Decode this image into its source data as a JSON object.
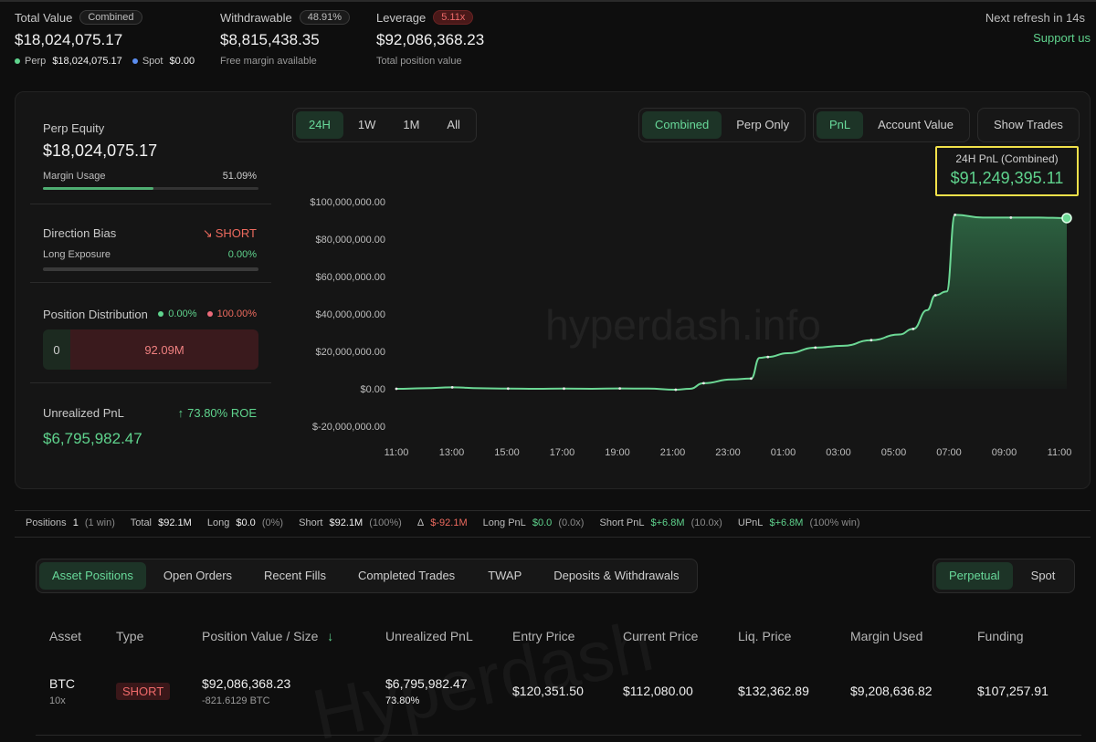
{
  "header": {
    "total_value": {
      "label": "Total Value",
      "badge": "Combined",
      "value": "$18,024,075.17",
      "perp_label": "Perp",
      "perp_value": "$18,024,075.17",
      "spot_label": "Spot",
      "spot_value": "$0.00"
    },
    "withdrawable": {
      "label": "Withdrawable",
      "badge": "48.91%",
      "value": "$8,815,438.35",
      "sub": "Free margin available"
    },
    "leverage": {
      "label": "Leverage",
      "badge": "5.11x",
      "value": "$92,086,368.23",
      "sub": "Total position value"
    },
    "refresh": "Next refresh in 14s",
    "support": "Support us"
  },
  "left": {
    "perp_equity_label": "Perp Equity",
    "perp_equity_value": "$18,024,075.17",
    "margin_usage_label": "Margin Usage",
    "margin_usage_value": "51.09%",
    "margin_usage_fraction": 0.5109,
    "direction_bias_label": "Direction Bias",
    "direction_bias_value": "SHORT",
    "long_exposure_label": "Long Exposure",
    "long_exposure_value": "0.00%",
    "position_dist_label": "Position Distribution",
    "dist_long": "0.00%",
    "dist_short": "100.00%",
    "dist_bar_long": "0",
    "dist_bar_short": "92.09M",
    "upnl_label": "Unrealized PnL",
    "roe": "73.80% ROE",
    "upnl_value": "$6,795,982.47"
  },
  "controls": {
    "ranges": [
      "24H",
      "1W",
      "1M",
      "All"
    ],
    "active_range": "24H",
    "modes": [
      "Combined",
      "Perp Only"
    ],
    "metrics": [
      "PnL",
      "Account Value"
    ],
    "show_trades": "Show Trades"
  },
  "pnl_box": {
    "label": "24H PnL (Combined)",
    "value": "$91,249,395.11"
  },
  "watermark": "hyperdash.info",
  "chart_data": {
    "type": "area",
    "title": "24H PnL (Combined)",
    "xlabel": "",
    "ylabel": "",
    "x_ticks": [
      "11:00",
      "13:00",
      "15:00",
      "17:00",
      "19:00",
      "21:00",
      "23:00",
      "01:00",
      "03:00",
      "05:00",
      "07:00",
      "09:00",
      "11:00"
    ],
    "y_ticks": [
      "$100,000,000.00",
      "$80,000,000.00",
      "$60,000,000.00",
      "$40,000,000.00",
      "$20,000,000.00",
      "$0.00",
      "$-20,000,000.00"
    ],
    "ylim": [
      -20000000,
      100000000
    ],
    "xlim": [
      0,
      24
    ],
    "series": [
      {
        "name": "PnL",
        "x": [
          0,
          1,
          2,
          3,
          4,
          5,
          6,
          7,
          8,
          9,
          10,
          10.5,
          11,
          12,
          12.7,
          13,
          13.3,
          14,
          15,
          16,
          17,
          18,
          18.5,
          19,
          19.3,
          19.7,
          20,
          21,
          22,
          23,
          24
        ],
        "y": [
          0,
          300000,
          800000,
          300000,
          100000,
          0,
          100000,
          0,
          200000,
          100000,
          -500000,
          0,
          3000000,
          5000000,
          5500000,
          16500000,
          17000000,
          19000000,
          22000000,
          23000000,
          26000000,
          29000000,
          32000000,
          42000000,
          50000000,
          52000000,
          93000000,
          91500000,
          91500000,
          91500000,
          91249395
        ]
      }
    ]
  },
  "summary": {
    "positions_label": "Positions",
    "positions_value": "1",
    "positions_note": "(1 win)",
    "total_label": "Total",
    "total_value": "$92.1M",
    "long_label": "Long",
    "long_value": "$0.0",
    "long_note": "(0%)",
    "short_label": "Short",
    "short_value": "$92.1M",
    "short_note": "(100%)",
    "delta_label": "Δ",
    "delta_value": "$-92.1M",
    "longpnl_label": "Long PnL",
    "longpnl_value": "$0.0",
    "longpnl_note": "(0.0x)",
    "shortpnl_label": "Short PnL",
    "shortpnl_value": "$+6.8M",
    "shortpnl_note": "(10.0x)",
    "upnl_label": "UPnL",
    "upnl_value": "$+6.8M",
    "upnl_note": "(100% win)"
  },
  "tabs": [
    "Asset Positions",
    "Open Orders",
    "Recent Fills",
    "Completed Trades",
    "TWAP",
    "Deposits & Withdrawals"
  ],
  "market_tabs": [
    "Perpetual",
    "Spot"
  ],
  "table": {
    "headers": [
      "Asset",
      "Type",
      "Position Value / Size",
      "Unrealized PnL",
      "Entry Price",
      "Current Price",
      "Liq. Price",
      "Margin Used",
      "Funding"
    ],
    "rows": [
      {
        "asset": "BTC",
        "leverage": "10x",
        "type": "SHORT",
        "position_value": "$92,086,368.23",
        "size": "-821.6129 BTC",
        "upnl": "$6,795,982.47",
        "upnl_pct": "73.80%",
        "entry": "$120,351.50",
        "current": "$112,080.00",
        "liq": "$132,362.89",
        "margin": "$9,208,636.82",
        "funding": "$107,257.91"
      }
    ]
  },
  "table_watermark": "Hyperdash"
}
